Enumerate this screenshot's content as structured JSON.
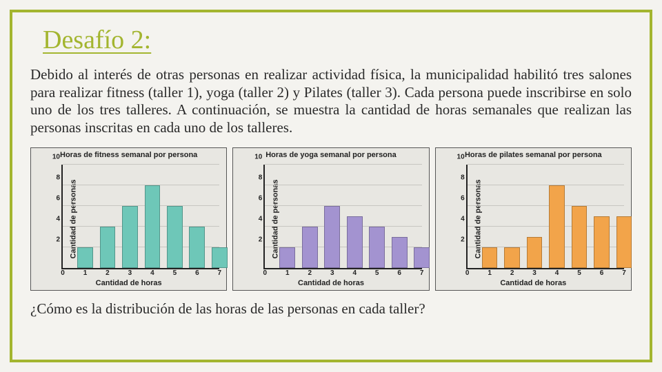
{
  "title": "Desafío 2:",
  "body": "Debido al interés de otras personas en realizar actividad física, la municipalidad habilitó tres salones para realizar fitness (taller 1), yoga (taller 2) y Pilates (taller 3). Cada persona puede inscribirse en solo uno de los tres talleres. A continuación, se muestra la cantidad de horas semanales que realizan las personas inscritas en cada uno de los talleres.",
  "question": "¿Cómo es la distribución de las horas de las personas en cada taller?",
  "axis": {
    "xlabel": "Cantidad de horas",
    "ylabel": "Cantidad de personas",
    "ymax": 10,
    "yticks": [
      2,
      4,
      6,
      8,
      10
    ],
    "xticks": [
      0,
      1,
      2,
      3,
      4,
      5,
      6,
      7
    ],
    "xtick_label_fontsize": 10,
    "ytick_label_fontsize": 10,
    "label_fontsize": 11,
    "grid_color": "#c7c6c1",
    "axis_color": "#222222",
    "background_color": "#e8e7e2",
    "bar_width": 0.7
  },
  "charts": [
    {
      "title": "Horas de fitness semanal por persona",
      "bar_color": "#6ec7b8",
      "categories": [
        1,
        2,
        3,
        4,
        5,
        6,
        7
      ],
      "values": [
        2,
        4,
        6,
        8,
        6,
        4,
        2
      ]
    },
    {
      "title": "Horas de yoga semanal por persona",
      "bar_color": "#a393d0",
      "categories": [
        1,
        2,
        3,
        4,
        5,
        6,
        7
      ],
      "values": [
        2,
        4,
        6,
        5,
        4,
        3,
        2
      ]
    },
    {
      "title": "Horas de pilates semanal por persona",
      "bar_color": "#f2a44a",
      "categories": [
        1,
        2,
        3,
        4,
        5,
        6,
        7
      ],
      "values": [
        2,
        2,
        3,
        8,
        6,
        5,
        5
      ]
    }
  ]
}
